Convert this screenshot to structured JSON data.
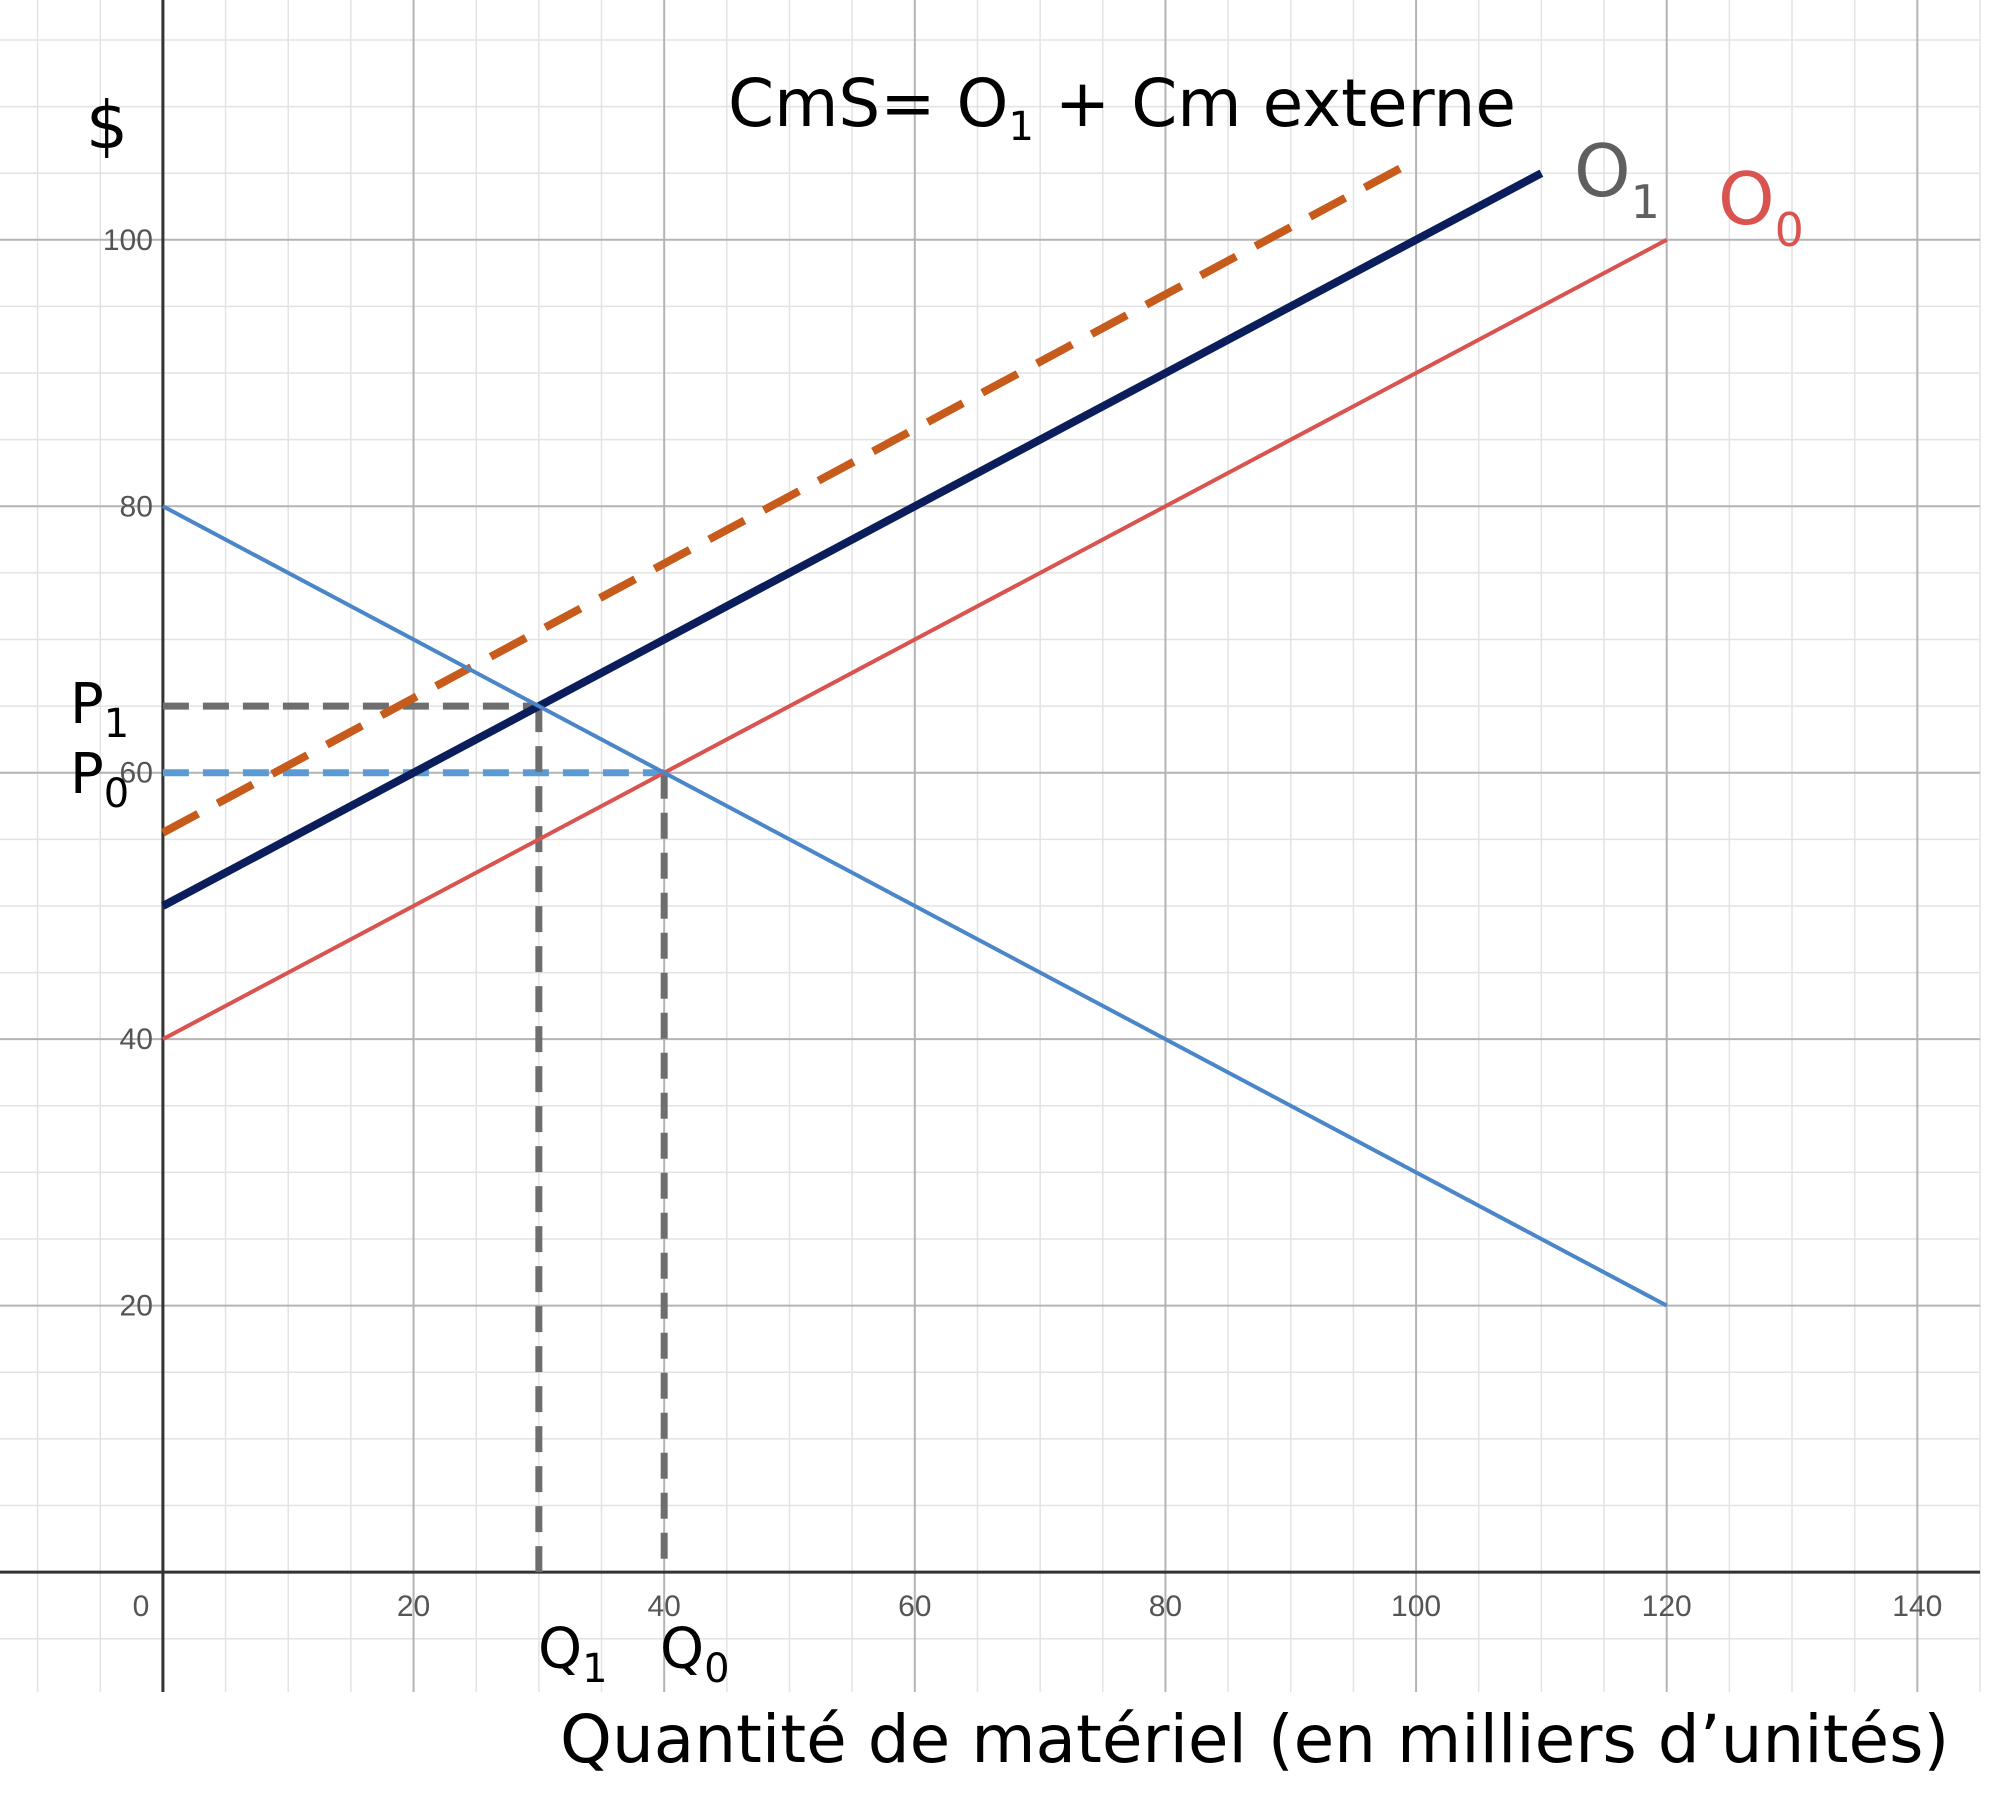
{
  "chart_data": {
    "type": "line",
    "title_prefix": "CmS= O",
    "title_sub": "1",
    "title_suffix": " + Cm externe",
    "ylabel": "$",
    "xlabel": "Quantité de matériel (en milliers d’unités)",
    "xlim": [
      -13,
      145
    ],
    "ylim": [
      -9,
      118
    ],
    "x_ticks": [
      0,
      20,
      40,
      60,
      80,
      100,
      120,
      140
    ],
    "y_ticks": [
      20,
      40,
      60,
      80,
      100
    ],
    "grid": true,
    "series": [
      {
        "name_main": "O",
        "name_sub": "0",
        "color": "#d9534f",
        "points": [
          [
            0,
            40
          ],
          [
            120,
            100
          ]
        ]
      },
      {
        "name_main": "O",
        "name_sub": "1",
        "color": "#0b1e5b",
        "points": [
          [
            0,
            50
          ],
          [
            110,
            105
          ]
        ]
      },
      {
        "color": "#c75b1c",
        "dashed": true,
        "points": [
          [
            0,
            55.5
          ],
          [
            100,
            106
          ]
        ]
      },
      {
        "color": "#4a86c8",
        "points": [
          [
            0,
            80
          ],
          [
            120,
            20
          ]
        ]
      }
    ],
    "reference_lines": [
      {
        "label_main": "P",
        "label_sub": "1",
        "y": 65,
        "x": 30,
        "color": "#6e6e6e"
      },
      {
        "label_main": "P",
        "label_sub": "0",
        "y": 60,
        "x": 40,
        "color": "#5b9bd5"
      },
      {
        "label_main": "Q",
        "label_sub": "1",
        "x": 30,
        "y": 65,
        "color": "#6e6e6e"
      },
      {
        "label_main": "Q",
        "label_sub": "0",
        "x": 40,
        "y": 60,
        "color": "#6e6e6e"
      }
    ]
  }
}
